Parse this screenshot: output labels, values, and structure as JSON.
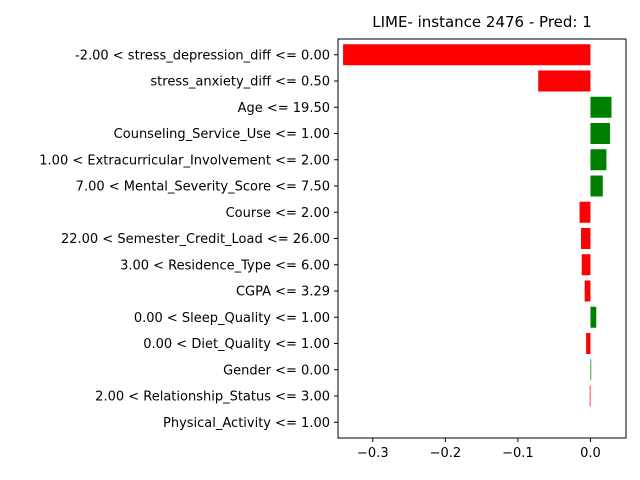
{
  "chart_data": {
    "type": "bar",
    "orientation": "horizontal",
    "title": "LIME- instance 2476 - Pred: 1",
    "xlabel": "",
    "ylabel": "",
    "xlim": [
      -0.348,
      0.049
    ],
    "xticks": [
      -0.3,
      -0.2,
      -0.1,
      0.0
    ],
    "xtick_labels": [
      "−0.3",
      "−0.2",
      "−0.1",
      "0.0"
    ],
    "grid": false,
    "legend": "none",
    "colors": {
      "positive": "#008000",
      "negative": "#ff0000"
    },
    "categories": [
      "-2.00 < stress_depression_diff <= 0.00",
      "stress_anxiety_diff <= 0.50",
      "Age <= 19.50",
      "Counseling_Service_Use <= 1.00",
      "1.00 < Extracurricular_Involvement <= 2.00",
      "7.00 < Mental_Severity_Score <= 7.50",
      "Course <= 2.00",
      "22.00 < Semester_Credit_Load <= 26.00",
      "3.00 < Residence_Type <= 6.00",
      "CGPA <= 3.29",
      "0.00 < Sleep_Quality <= 1.00",
      "0.00 < Diet_Quality <= 1.00",
      "Gender <= 0.00",
      "2.00 < Relationship_Status <= 3.00",
      "Physical_Activity <= 1.00"
    ],
    "values": [
      -0.341,
      -0.072,
      0.029,
      0.027,
      0.022,
      0.017,
      -0.015,
      -0.013,
      -0.012,
      -0.008,
      0.008,
      -0.006,
      0.001,
      -0.001,
      0.0
    ]
  }
}
